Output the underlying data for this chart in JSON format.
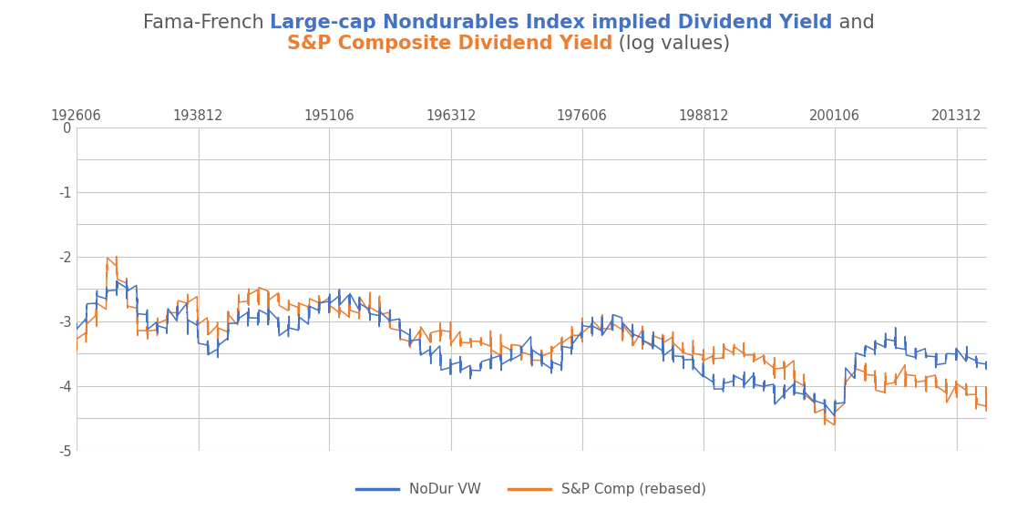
{
  "blue_color": "#4472C4",
  "orange_color": "#ED7D31",
  "black_color": "#595959",
  "bg_color": "#FFFFFF",
  "grid_color": "#C8C8C8",
  "ylim_bottom": -5.0,
  "ylim_top": 0.0,
  "yticks": [
    0,
    -0.5,
    -1.0,
    -1.5,
    -2.0,
    -2.5,
    -3.0,
    -3.5,
    -4.0,
    -4.5,
    -5.0
  ],
  "ytick_labels": [
    "0",
    "",
    "-1",
    "",
    "-2",
    "",
    "-3",
    "",
    "-4",
    "",
    "-5"
  ],
  "xtick_positions": [
    192606,
    193812,
    195106,
    196312,
    197606,
    198812,
    200106,
    201312
  ],
  "xtick_labels": [
    "192606",
    "193812",
    "195106",
    "196312",
    "197606",
    "198812",
    "200106",
    "201312"
  ],
  "legend_label_blue": "NoDur VW",
  "legend_label_orange": "S&P Comp (rebased)",
  "title_line1_parts": [
    [
      "Fama-French ",
      "#595959",
      false
    ],
    [
      "Large-cap Nondurables Index implied Dividend Yield",
      "#4472C4",
      true
    ],
    [
      " and",
      "#595959",
      false
    ]
  ],
  "title_line2_parts": [
    [
      "S&P Composite Dividend Yield",
      "#ED7D31",
      true
    ],
    [
      " (log values)",
      "#595959",
      false
    ]
  ],
  "title_fontsize": 15,
  "tick_fontsize": 10.5,
  "legend_fontsize": 11,
  "line_width": 1.1
}
